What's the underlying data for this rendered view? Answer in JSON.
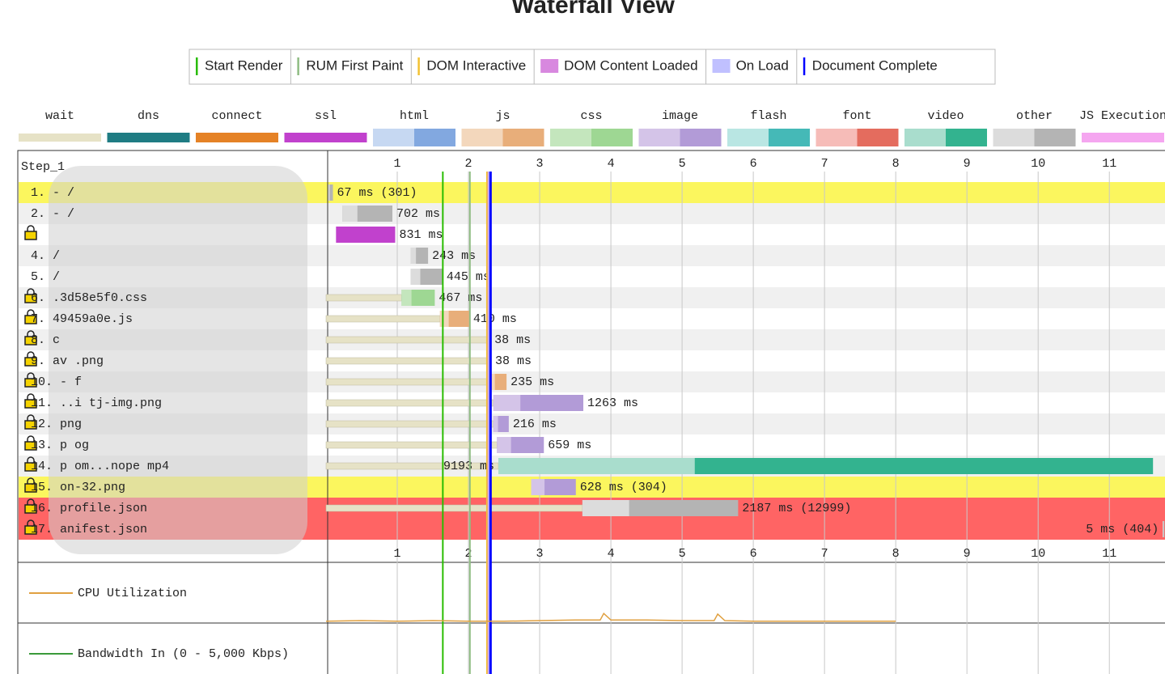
{
  "title": "Waterfall View",
  "event_legend": [
    {
      "name": "Start Render",
      "color": "#28bc00",
      "marker": "line",
      "time": 1.64
    },
    {
      "name": "RUM First Paint",
      "color": "#8fbc83",
      "marker": "line",
      "time": 2.02
    },
    {
      "name": "DOM Interactive",
      "color": "#f2c233",
      "marker": "line",
      "time": 2.26
    },
    {
      "name": "DOM Content Loaded",
      "color": "#d888df",
      "marker": "block",
      "time": 2.28
    },
    {
      "name": "On Load",
      "color": "#c0c0ff",
      "marker": "block",
      "time": 2.29
    },
    {
      "name": "Document Complete",
      "color": "#0000ff",
      "marker": "line",
      "time": 2.31
    }
  ],
  "type_legend": [
    {
      "name": "wait",
      "color": "#e6e2c6"
    },
    {
      "name": "dns",
      "color": "#1f7c83"
    },
    {
      "name": "connect",
      "color": "#e58226"
    },
    {
      "name": "ssl",
      "color": "#c141cd"
    },
    {
      "name": "html",
      "color": "#c6d8f2",
      "dark": "#82a8e0"
    },
    {
      "name": "js",
      "color": "#f3d7bc",
      "dark": "#e8ae7a"
    },
    {
      "name": "css",
      "color": "#c4e6bd",
      "dark": "#9ed793"
    },
    {
      "name": "image",
      "color": "#d4c4e8",
      "dark": "#b29bd7"
    },
    {
      "name": "flash",
      "color": "#b9e6e3",
      "dark": "#45b9b7"
    },
    {
      "name": "font",
      "color": "#f6bcb8",
      "dark": "#e46c5e"
    },
    {
      "name": "video",
      "color": "#a9ddcd",
      "dark": "#33b38f"
    },
    {
      "name": "other",
      "color": "#dcdcdc",
      "dark": "#b4b4b4"
    },
    {
      "name": "JS Execution",
      "color": "#f5a6f0"
    }
  ],
  "waterfall": {
    "step_label": "Step_1",
    "xlim": [
      0,
      11.77
    ],
    "xticks": [
      1,
      2,
      3,
      4,
      5,
      6,
      7,
      8,
      9,
      10,
      11
    ],
    "rows": [
      {
        "label": "1. - /",
        "start": 0.03,
        "duration_ms": 67,
        "value_label": "67 ms (301)",
        "type": "other",
        "highlight": "#fbf65e"
      },
      {
        "label": "2. - /",
        "start": 0.23,
        "duration_ms": 702,
        "value_label": "702 ms",
        "type": "other"
      },
      {
        "lock": true,
        "start": 0.14,
        "duration_ms": 831,
        "value_label": "831 ms",
        "type": "ssl"
      },
      {
        "label": "4. /",
        "start": 1.19,
        "duration_ms": 243,
        "value_label": "243 ms",
        "type": "other"
      },
      {
        "label": "5. /",
        "start": 1.19,
        "duration_ms": 445,
        "value_label": "445 ms",
        "type": "other"
      },
      {
        "label": "6. .3d58e5f0.css",
        "lock": true,
        "wait": true,
        "start": 1.06,
        "duration_ms": 467,
        "value_label": "467 ms",
        "type": "css"
      },
      {
        "label": "7. 49459a0e.js",
        "lock": true,
        "wait": true,
        "start": 1.6,
        "duration_ms": 410,
        "value_label": "410 ms",
        "type": "js"
      },
      {
        "label": "8. c",
        "lock": true,
        "wait": true,
        "start": 2.27,
        "duration_ms": 38,
        "value_label": "38 ms",
        "type": "image"
      },
      {
        "label": "9. av .png",
        "lock": true,
        "wait": true,
        "start": 2.28,
        "duration_ms": 38,
        "value_label": "38 ms",
        "type": "image"
      },
      {
        "label": "10. - f",
        "lock": true,
        "wait": true,
        "start": 2.3,
        "duration_ms": 235,
        "value_label": "235 ms",
        "type": "js"
      },
      {
        "label": "11. ..i tj-img.png",
        "lock": true,
        "wait": true,
        "start": 2.35,
        "duration_ms": 1263,
        "value_label": "1263 ms",
        "type": "image"
      },
      {
        "label": "12. png",
        "lock": true,
        "wait": true,
        "start": 2.35,
        "duration_ms": 216,
        "value_label": "216 ms",
        "type": "image"
      },
      {
        "label": "13. p og",
        "lock": true,
        "wait": true,
        "start": 2.4,
        "duration_ms": 659,
        "value_label": "659 ms",
        "type": "image"
      },
      {
        "label": "14. p om...nope mp4",
        "lock": true,
        "wait": true,
        "start": 2.42,
        "duration_ms": 9193,
        "value_label": "9193 ms",
        "type": "video"
      },
      {
        "label": "15. on-32.png",
        "lock": true,
        "start": 2.88,
        "duration_ms": 628,
        "value_label": "628 ms (304)",
        "type": "image",
        "highlight": "#fbf65e"
      },
      {
        "label": "16. profile.json",
        "lock": true,
        "wait": true,
        "start": 3.6,
        "duration_ms": 2187,
        "value_label": "2187 ms (12999)",
        "type": "other",
        "highlight": "#ff6464"
      },
      {
        "label": "17. anifest.json",
        "lock": true,
        "start": 11.75,
        "duration_ms": 5,
        "value_label": "5 ms (404)",
        "type": "other",
        "highlight": "#ff6464"
      }
    ]
  },
  "cpu": {
    "label": "CPU Utilization",
    "color": "#e0a040",
    "ylim": [
      0,
      100
    ],
    "x": [
      0,
      0.5,
      1,
      1.5,
      2,
      2.5,
      3,
      3.5,
      3.85,
      3.9,
      4.0,
      4.5,
      5,
      5.45,
      5.5,
      5.6,
      6,
      7,
      8
    ],
    "values": [
      3,
      4,
      3,
      4,
      3,
      3,
      4,
      5,
      5,
      16,
      5,
      5,
      4,
      4,
      15,
      4,
      3,
      3,
      3
    ]
  },
  "bandwidth": {
    "label": "Bandwidth In (0 - 5,000 Kbps)",
    "color": "#3a9a3a"
  }
}
